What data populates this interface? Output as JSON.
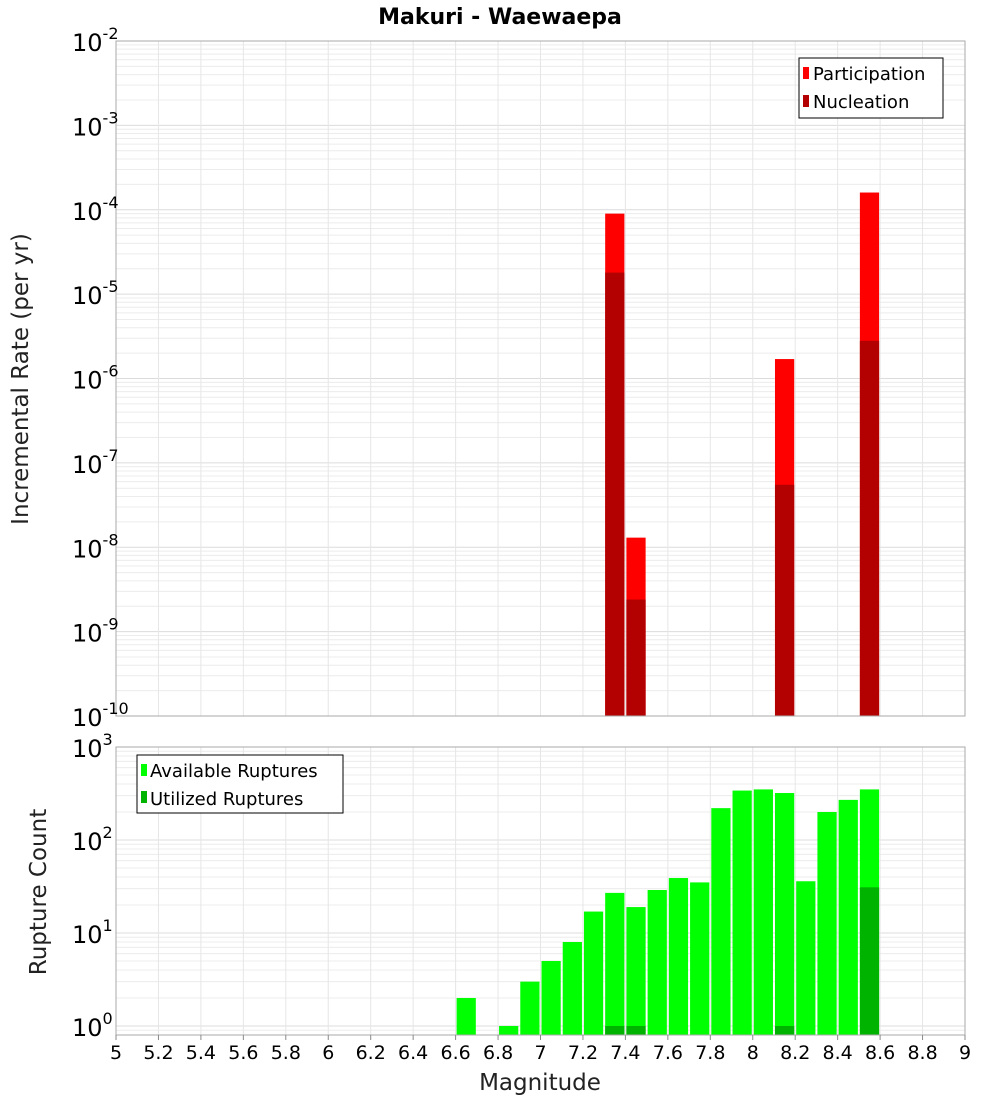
{
  "chart_data": [
    {
      "type": "bar",
      "title": "Makuri - Waewaepa",
      "xlabel": "",
      "ylabel": "Incremental Rate (per yr)",
      "yscale": "log",
      "ylim": [
        1e-10,
        0.01
      ],
      "xlim": [
        5,
        9
      ],
      "grid": true,
      "legend_position": "top-right",
      "series": [
        {
          "name": "Participation",
          "color": "#ff0000",
          "x": [
            7.35,
            7.45,
            8.15,
            8.55
          ],
          "values": [
            9e-05,
            1.3e-08,
            1.7e-06,
            0.00016
          ]
        },
        {
          "name": "Nucleation",
          "color": "#b30000",
          "x": [
            7.35,
            7.45,
            8.15,
            8.55
          ],
          "values": [
            1.8e-05,
            2.4e-09,
            5.5e-08,
            2.8e-06
          ]
        }
      ],
      "y_ticks": [
        {
          "base": "10",
          "exp": "-10"
        },
        {
          "base": "10",
          "exp": "-9"
        },
        {
          "base": "10",
          "exp": "-8"
        },
        {
          "base": "10",
          "exp": "-7"
        },
        {
          "base": "10",
          "exp": "-6"
        },
        {
          "base": "10",
          "exp": "-5"
        },
        {
          "base": "10",
          "exp": "-4"
        },
        {
          "base": "10",
          "exp": "-3"
        },
        {
          "base": "10",
          "exp": "-2"
        }
      ]
    },
    {
      "type": "bar",
      "title": "",
      "xlabel": "Magnitude",
      "ylabel": "Rupture Count",
      "yscale": "log",
      "ylim": [
        0.8,
        1000
      ],
      "xlim": [
        5,
        9
      ],
      "grid": true,
      "legend_position": "top-left",
      "series": [
        {
          "name": "Available Ruptures",
          "color": "#00ff00",
          "x": [
            6.65,
            6.85,
            6.95,
            7.05,
            7.15,
            7.25,
            7.35,
            7.45,
            7.55,
            7.65,
            7.75,
            7.85,
            7.95,
            8.05,
            8.15,
            8.25,
            8.35,
            8.45,
            8.55
          ],
          "values": [
            2,
            1,
            3,
            5,
            8,
            17,
            27,
            19,
            29,
            39,
            35,
            220,
            340,
            350,
            320,
            36,
            200,
            270,
            350
          ]
        },
        {
          "name": "Utilized Ruptures",
          "color": "#00b300",
          "x": [
            7.35,
            7.45,
            8.15,
            8.55
          ],
          "values": [
            1,
            1,
            1,
            31
          ]
        }
      ],
      "y_ticks": [
        {
          "base": "10",
          "exp": "0"
        },
        {
          "base": "10",
          "exp": "1"
        },
        {
          "base": "10",
          "exp": "2"
        },
        {
          "base": "10",
          "exp": "3"
        }
      ],
      "x_ticks": [
        "5",
        "5.2",
        "5.4",
        "5.6",
        "5.8",
        "6",
        "6.2",
        "6.4",
        "6.6",
        "6.8",
        "7",
        "7.2",
        "7.4",
        "7.6",
        "7.8",
        "8",
        "8.2",
        "8.4",
        "8.6",
        "8.8",
        "9"
      ]
    }
  ]
}
